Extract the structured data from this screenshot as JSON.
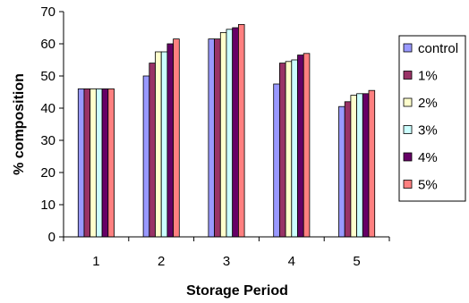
{
  "chart_data": {
    "type": "bar",
    "title": "",
    "xlabel": "Storage Period",
    "ylabel": "% composition",
    "categories": [
      "1",
      "2",
      "3",
      "4",
      "5"
    ],
    "ylim": [
      0,
      70
    ],
    "yticks": [
      0,
      10,
      20,
      30,
      40,
      50,
      60,
      70
    ],
    "grid": false,
    "legend_position": "right",
    "series": [
      {
        "name": "control",
        "color": "#9999ff",
        "values": [
          46,
          50,
          61.5,
          47.5,
          40.5
        ]
      },
      {
        "name": "1%",
        "color": "#993366",
        "values": [
          46,
          54,
          61.5,
          54,
          42
        ]
      },
      {
        "name": "2%",
        "color": "#ffffcc",
        "values": [
          46,
          57.5,
          63.5,
          54.5,
          44
        ]
      },
      {
        "name": "3%",
        "color": "#ccffff",
        "values": [
          46,
          57.5,
          64.5,
          55,
          44.5
        ]
      },
      {
        "name": "4%",
        "color": "#660066",
        "values": [
          46,
          60,
          65,
          56.5,
          44.5
        ]
      },
      {
        "name": "5%",
        "color": "#ff8080",
        "values": [
          46,
          61.5,
          66,
          57,
          45.5
        ]
      }
    ]
  }
}
